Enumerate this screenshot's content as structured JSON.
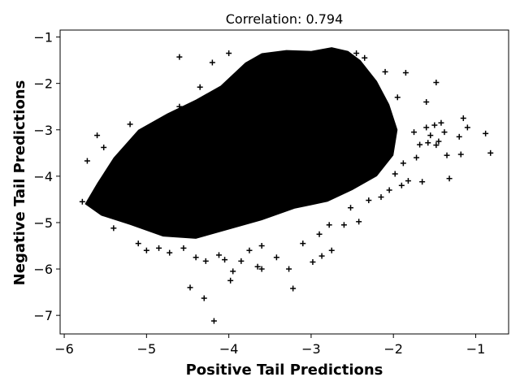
{
  "chart_data": {
    "type": "scatter",
    "title": "Correlation: 0.794",
    "xlabel": "Positive Tail Predictions",
    "ylabel": "Negative Tail Predictions",
    "xlim": [
      -6.05,
      -0.6
    ],
    "ylim": [
      -7.4,
      -0.85
    ],
    "xticks": [
      -6,
      -5,
      -4,
      -3,
      -2,
      -1
    ],
    "yticks": [
      -7,
      -6,
      -5,
      -4,
      -3,
      -2,
      -1
    ],
    "xtick_labels": [
      "−6",
      "−5",
      "−4",
      "−3",
      "−2",
      "−1"
    ],
    "ytick_labels": [
      "−7",
      "−6",
      "−5",
      "−4",
      "−3",
      "−2",
      "−1"
    ],
    "marker": "+",
    "color": "#000000",
    "grid": false,
    "dense_region": [
      [
        -5.75,
        -4.6
      ],
      [
        -5.6,
        -4.15
      ],
      [
        -5.4,
        -3.6
      ],
      [
        -5.1,
        -3.0
      ],
      [
        -4.75,
        -2.65
      ],
      [
        -4.4,
        -2.35
      ],
      [
        -4.1,
        -2.05
      ],
      [
        -3.8,
        -1.55
      ],
      [
        -3.6,
        -1.35
      ],
      [
        -3.3,
        -1.28
      ],
      [
        -3.0,
        -1.3
      ],
      [
        -2.75,
        -1.22
      ],
      [
        -2.55,
        -1.3
      ],
      [
        -2.4,
        -1.5
      ],
      [
        -2.2,
        -1.95
      ],
      [
        -2.05,
        -2.45
      ],
      [
        -1.95,
        -3.0
      ],
      [
        -2.0,
        -3.55
      ],
      [
        -2.2,
        -4.0
      ],
      [
        -2.5,
        -4.3
      ],
      [
        -2.8,
        -4.55
      ],
      [
        -3.2,
        -4.7
      ],
      [
        -3.6,
        -4.95
      ],
      [
        -4.0,
        -5.15
      ],
      [
        -4.4,
        -5.35
      ],
      [
        -4.8,
        -5.3
      ],
      [
        -5.2,
        -5.05
      ],
      [
        -5.55,
        -4.85
      ]
    ],
    "points": [
      [
        -5.78,
        -4.55
      ],
      [
        -5.72,
        -3.67
      ],
      [
        -5.6,
        -3.12
      ],
      [
        -5.52,
        -3.38
      ],
      [
        -5.45,
        -3.98
      ],
      [
        -5.4,
        -5.12
      ],
      [
        -5.25,
        -3.4
      ],
      [
        -5.2,
        -2.88
      ],
      [
        -5.1,
        -5.45
      ],
      [
        -5.0,
        -5.6
      ],
      [
        -4.9,
        -3.0
      ],
      [
        -4.85,
        -5.55
      ],
      [
        -4.72,
        -5.65
      ],
      [
        -4.6,
        -2.5
      ],
      [
        -4.6,
        -1.43
      ],
      [
        -4.55,
        -5.55
      ],
      [
        -4.4,
        -5.75
      ],
      [
        -4.47,
        -6.4
      ],
      [
        -4.35,
        -2.08
      ],
      [
        -4.3,
        -6.63
      ],
      [
        -4.28,
        -5.83
      ],
      [
        -4.2,
        -1.55
      ],
      [
        -4.18,
        -7.12
      ],
      [
        -4.12,
        -5.7
      ],
      [
        -4.05,
        -5.8
      ],
      [
        -4.0,
        -1.35
      ],
      [
        -3.98,
        -6.25
      ],
      [
        -3.95,
        -6.05
      ],
      [
        -3.85,
        -5.83
      ],
      [
        -3.75,
        -5.6
      ],
      [
        -3.65,
        -5.95
      ],
      [
        -3.6,
        -5.5
      ],
      [
        -3.6,
        -6.0
      ],
      [
        -3.42,
        -5.75
      ],
      [
        -3.27,
        -6.0
      ],
      [
        -3.22,
        -6.42
      ],
      [
        -3.1,
        -5.45
      ],
      [
        -2.98,
        -5.85
      ],
      [
        -2.87,
        -5.72
      ],
      [
        -2.9,
        -5.25
      ],
      [
        -2.75,
        -5.6
      ],
      [
        -2.78,
        -5.05
      ],
      [
        -2.6,
        -5.05
      ],
      [
        -2.52,
        -4.68
      ],
      [
        -2.42,
        -4.98
      ],
      [
        -2.3,
        -4.52
      ],
      [
        -2.15,
        -4.45
      ],
      [
        -2.05,
        -4.3
      ],
      [
        -1.9,
        -4.2
      ],
      [
        -1.82,
        -4.1
      ],
      [
        -1.65,
        -4.12
      ],
      [
        -1.72,
        -3.6
      ],
      [
        -1.6,
        -2.95
      ],
      [
        -1.58,
        -3.28
      ],
      [
        -1.5,
        -2.9
      ],
      [
        -1.48,
        -3.33
      ],
      [
        -1.48,
        -1.98
      ],
      [
        -1.35,
        -3.55
      ],
      [
        -1.32,
        -4.05
      ],
      [
        -1.38,
        -3.05
      ],
      [
        -1.45,
        -3.25
      ],
      [
        -1.2,
        -3.15
      ],
      [
        -1.18,
        -3.53
      ],
      [
        -1.15,
        -2.75
      ],
      [
        -1.1,
        -2.95
      ],
      [
        -1.6,
        -2.4
      ],
      [
        -1.85,
        -1.77
      ],
      [
        -2.1,
        -1.75
      ],
      [
        -2.25,
        -1.95
      ],
      [
        -1.95,
        -2.3
      ],
      [
        -2.35,
        -1.45
      ],
      [
        -2.45,
        -1.35
      ],
      [
        -0.88,
        -3.08
      ],
      [
        -0.82,
        -3.5
      ],
      [
        -1.42,
        -2.85
      ],
      [
        -1.55,
        -3.12
      ],
      [
        -1.68,
        -3.32
      ],
      [
        -1.75,
        -3.05
      ],
      [
        -1.88,
        -3.72
      ],
      [
        -1.98,
        -3.95
      ]
    ]
  }
}
